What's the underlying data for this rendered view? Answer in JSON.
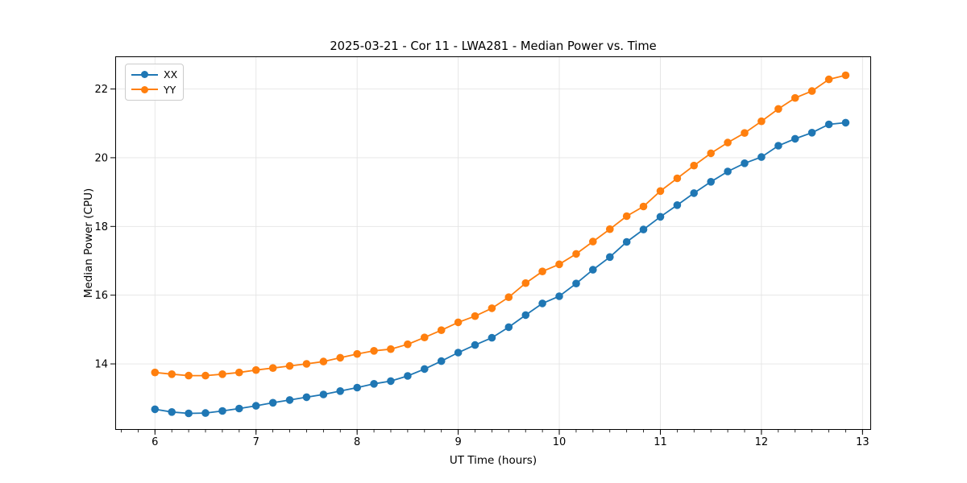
{
  "chart_data": {
    "type": "line",
    "title": "2025-03-21 - Cor 11 - LWA281 - Median Power vs. Time",
    "xlabel": "UT Time (hours)",
    "ylabel": "Median Power (CPU)",
    "xlim": [
      5.607,
      13.085
    ],
    "ylim": [
      12.08,
      22.95
    ],
    "xticks": [
      6,
      7,
      8,
      9,
      10,
      11,
      12,
      13
    ],
    "yticks": [
      14,
      16,
      18,
      20,
      22
    ],
    "x_minor_step": 0.166667,
    "grid": true,
    "legend_position": "upper-left",
    "marker": "o",
    "x": [
      6.0,
      6.167,
      6.333,
      6.5,
      6.667,
      6.833,
      7.0,
      7.167,
      7.333,
      7.5,
      7.667,
      7.833,
      8.0,
      8.167,
      8.333,
      8.5,
      8.667,
      8.833,
      9.0,
      9.167,
      9.333,
      9.5,
      9.667,
      9.833,
      10.0,
      10.167,
      10.333,
      10.5,
      10.667,
      10.833,
      11.0,
      11.167,
      11.333,
      11.5,
      11.667,
      11.833,
      12.0,
      12.167,
      12.333,
      12.5,
      12.667,
      12.833
    ],
    "series": [
      {
        "name": "XX",
        "color": "#1f77b4",
        "values": [
          12.68,
          12.6,
          12.56,
          12.57,
          12.63,
          12.7,
          12.78,
          12.87,
          12.95,
          13.03,
          13.11,
          13.21,
          13.31,
          13.42,
          13.5,
          13.65,
          13.85,
          14.08,
          14.33,
          14.55,
          14.76,
          15.07,
          15.42,
          15.76,
          15.97,
          16.34,
          16.74,
          17.11,
          17.55,
          17.91,
          18.28,
          18.62,
          18.97,
          19.3,
          19.6,
          19.84,
          20.02,
          20.35,
          20.55,
          20.73,
          20.97,
          21.02
        ]
      },
      {
        "name": "YY",
        "color": "#ff7f0e",
        "values": [
          13.75,
          13.7,
          13.66,
          13.66,
          13.7,
          13.75,
          13.82,
          13.88,
          13.94,
          14.0,
          14.07,
          14.18,
          14.29,
          14.38,
          14.43,
          14.57,
          14.77,
          14.98,
          15.21,
          15.39,
          15.62,
          15.94,
          16.35,
          16.69,
          16.9,
          17.2,
          17.56,
          17.92,
          18.3,
          18.58,
          19.03,
          19.4,
          19.77,
          20.13,
          20.44,
          20.72,
          21.06,
          21.42,
          21.74,
          21.94,
          22.28,
          22.4
        ]
      }
    ],
    "style": {
      "grid_color": "#e4e4e4",
      "spine_color": "#000000",
      "tick_color": "#000000",
      "background": "#ffffff"
    }
  }
}
